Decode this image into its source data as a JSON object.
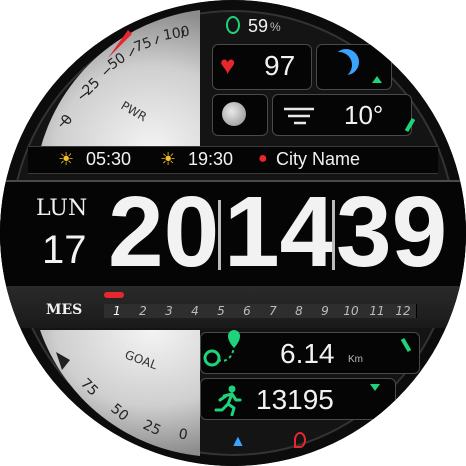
{
  "battery": {
    "value": "59",
    "unit": "%"
  },
  "heart_rate": {
    "value": "97"
  },
  "weather": {
    "temperature": "10°"
  },
  "sun": {
    "sunrise": "05:30",
    "sunset": "19:30"
  },
  "location": {
    "city": "City Name"
  },
  "date": {
    "weekday": "LUN",
    "day": "17"
  },
  "time": {
    "hours": "20",
    "minutes": "14",
    "seconds": "39"
  },
  "month_bar": {
    "label": "MES",
    "months": [
      "1",
      "2",
      "3",
      "4",
      "5",
      "6",
      "7",
      "8",
      "9",
      "10",
      "11",
      "12"
    ],
    "current_month": 1
  },
  "distance": {
    "value": "6.14",
    "unit": "Km"
  },
  "steps": {
    "value": "13195"
  },
  "power_gauge": {
    "label": "PWR",
    "ticks": [
      "0",
      "25",
      "50",
      "75",
      "100"
    ]
  },
  "goal_gauge": {
    "label": "GOAL",
    "ticks": [
      "75",
      "50",
      "25",
      "0"
    ]
  },
  "colors": {
    "accent_red": "#e8262d",
    "accent_green": "#1fd37a",
    "accent_blue": "#3aa2ff"
  }
}
